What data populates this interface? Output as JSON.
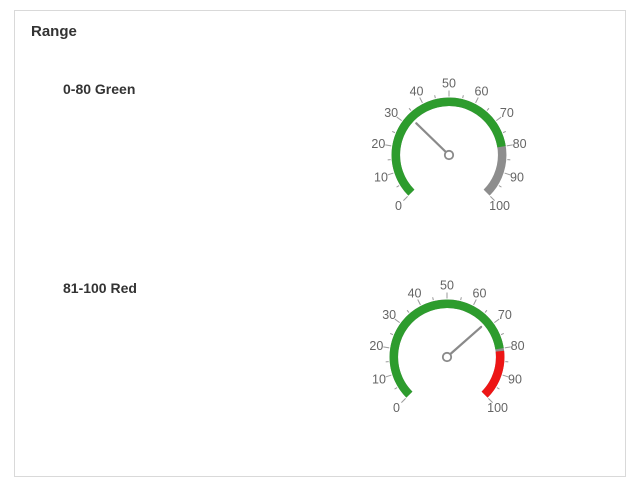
{
  "card": {
    "title": "Range"
  },
  "rows": [
    {
      "label": "0-80 Green"
    },
    {
      "label": "81-100 Red"
    }
  ],
  "colors": {
    "range_green": "#2D9C2D",
    "range_red": "#ED1515",
    "track_gray": "#8D8D8D",
    "needle_gray": "#8A8A8A",
    "tick_gray": "#9A9A9A",
    "label_gray": "#656565",
    "title_text": "#333333",
    "card_border": "#D9D9D9"
  },
  "chart_data": [
    {
      "type": "gauge",
      "title": "0-80 Green",
      "min": 0,
      "max": 100,
      "start_angle": 225,
      "end_angle": -45,
      "major_tick_step": 10,
      "minor_tick_step": 5,
      "tick_labels": [
        0,
        10,
        20,
        30,
        40,
        50,
        60,
        70,
        80,
        90,
        100
      ],
      "pointer_value": 33,
      "track_color": "#8D8D8D",
      "needle_color": "#8A8A8A",
      "ranges": [
        {
          "from": 0,
          "to": 80,
          "color": "#2D9C2D"
        }
      ]
    },
    {
      "type": "gauge",
      "title": "81-100 Red",
      "min": 0,
      "max": 100,
      "start_angle": 225,
      "end_angle": -45,
      "major_tick_step": 10,
      "minor_tick_step": 5,
      "tick_labels": [
        0,
        10,
        20,
        30,
        40,
        50,
        60,
        70,
        80,
        90,
        100
      ],
      "pointer_value": 68,
      "track_color": "#8D8D8D",
      "needle_color": "#8A8A8A",
      "ranges": [
        {
          "from": 0,
          "to": 80,
          "color": "#2D9C2D"
        },
        {
          "from": 81,
          "to": 100,
          "color": "#ED1515"
        }
      ]
    }
  ]
}
